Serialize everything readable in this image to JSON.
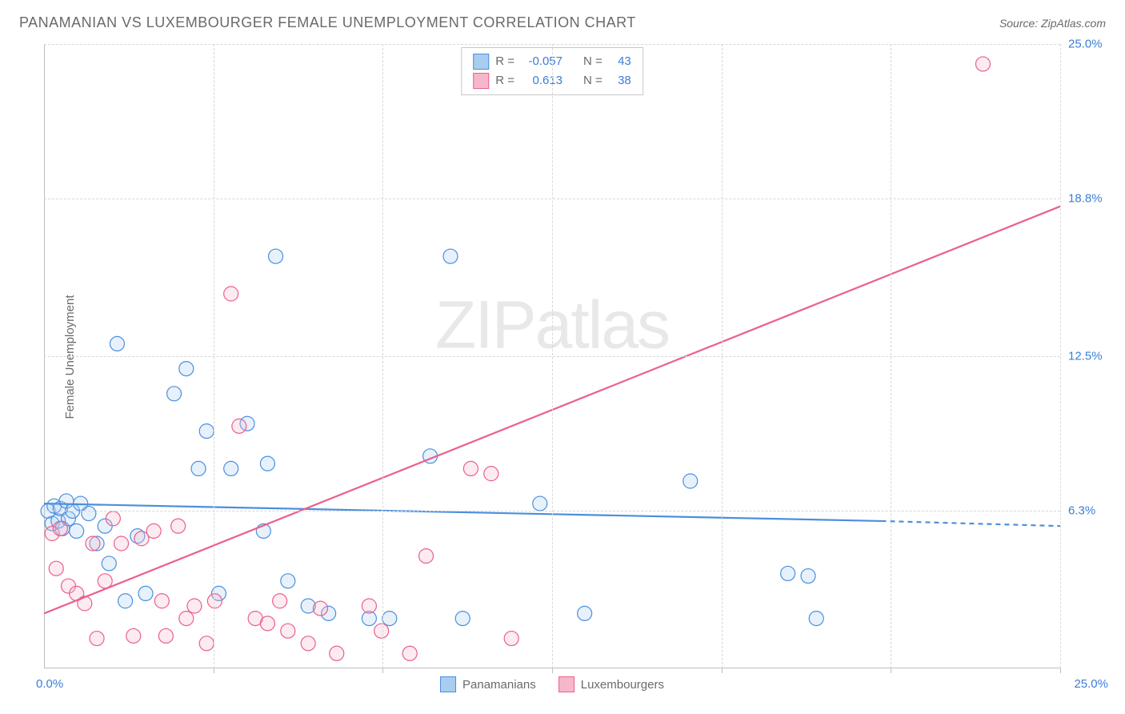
{
  "title": "PANAMANIAN VS LUXEMBOURGER FEMALE UNEMPLOYMENT CORRELATION CHART",
  "source": "Source: ZipAtlas.com",
  "ylabel": "Female Unemployment",
  "watermark_left": "ZIP",
  "watermark_right": "atlas",
  "chart": {
    "type": "scatter",
    "xlim": [
      0,
      25
    ],
    "ylim": [
      0,
      25
    ],
    "y_ticks": [
      6.3,
      12.5,
      18.8,
      25.0
    ],
    "y_tick_labels": [
      "6.3%",
      "12.5%",
      "18.8%",
      "25.0%"
    ],
    "x_tick_left": "0.0%",
    "x_tick_right": "25.0%",
    "x_grid_positions": [
      4.17,
      8.33,
      12.5,
      16.67,
      20.83,
      25.0
    ],
    "background_color": "#ffffff",
    "grid_color": "#d8d8d8",
    "axis_color": "#bdbdbd",
    "marker_radius": 9,
    "marker_stroke_width": 1.2,
    "marker_fill_opacity": 0.28,
    "line_width": 2.2,
    "series": [
      {
        "name": "Panamanians",
        "color": "#4c8fdd",
        "fill": "#a9cdef",
        "R_label": "R =",
        "R": "-0.057",
        "N_label": "N =",
        "N": "43",
        "trend": {
          "x1": 0,
          "y1": 6.6,
          "x2": 20.6,
          "y2": 5.9,
          "dash_to_x": 25,
          "dash_to_y": 5.7
        },
        "points": [
          [
            0.1,
            6.3
          ],
          [
            0.2,
            5.8
          ],
          [
            0.25,
            6.5
          ],
          [
            0.35,
            5.9
          ],
          [
            0.4,
            6.4
          ],
          [
            0.45,
            5.6
          ],
          [
            0.55,
            6.7
          ],
          [
            0.6,
            6.0
          ],
          [
            0.7,
            6.3
          ],
          [
            0.8,
            5.5
          ],
          [
            0.9,
            6.6
          ],
          [
            1.1,
            6.2
          ],
          [
            1.3,
            5.0
          ],
          [
            1.5,
            5.7
          ],
          [
            1.6,
            4.2
          ],
          [
            1.8,
            13.0
          ],
          [
            2.3,
            5.3
          ],
          [
            2.5,
            3.0
          ],
          [
            3.2,
            11.0
          ],
          [
            3.5,
            12.0
          ],
          [
            3.8,
            8.0
          ],
          [
            4.0,
            9.5
          ],
          [
            4.6,
            8.0
          ],
          [
            5.0,
            9.8
          ],
          [
            5.5,
            8.2
          ],
          [
            5.7,
            16.5
          ],
          [
            6.5,
            2.5
          ],
          [
            7.0,
            2.2
          ],
          [
            8.0,
            2.0
          ],
          [
            8.5,
            2.0
          ],
          [
            9.5,
            8.5
          ],
          [
            10.3,
            2.0
          ],
          [
            10.0,
            16.5
          ],
          [
            12.2,
            6.6
          ],
          [
            13.3,
            2.2
          ],
          [
            15.9,
            7.5
          ],
          [
            18.3,
            3.8
          ],
          [
            18.8,
            3.7
          ],
          [
            19.0,
            2.0
          ],
          [
            4.3,
            3.0
          ],
          [
            5.4,
            5.5
          ],
          [
            6.0,
            3.5
          ],
          [
            2.0,
            2.7
          ]
        ]
      },
      {
        "name": "Luxembourgers",
        "color": "#ec5f8a",
        "fill": "#f6b7cb",
        "R_label": "R =",
        "R": "0.613",
        "N_label": "N =",
        "N": "38",
        "trend": {
          "x1": 0,
          "y1": 2.2,
          "x2": 25,
          "y2": 18.5
        },
        "points": [
          [
            0.2,
            5.4
          ],
          [
            0.3,
            4.0
          ],
          [
            0.4,
            5.6
          ],
          [
            0.6,
            3.3
          ],
          [
            0.8,
            3.0
          ],
          [
            1.0,
            2.6
          ],
          [
            1.2,
            5.0
          ],
          [
            1.3,
            1.2
          ],
          [
            1.5,
            3.5
          ],
          [
            1.7,
            6.0
          ],
          [
            1.9,
            5.0
          ],
          [
            2.2,
            1.3
          ],
          [
            2.4,
            5.2
          ],
          [
            2.7,
            5.5
          ],
          [
            2.9,
            2.7
          ],
          [
            3.0,
            1.3
          ],
          [
            3.3,
            5.7
          ],
          [
            3.5,
            2.0
          ],
          [
            3.7,
            2.5
          ],
          [
            4.0,
            1.0
          ],
          [
            4.2,
            2.7
          ],
          [
            4.6,
            15.0
          ],
          [
            4.8,
            9.7
          ],
          [
            5.2,
            2.0
          ],
          [
            5.5,
            1.8
          ],
          [
            5.8,
            2.7
          ],
          [
            6.0,
            1.5
          ],
          [
            6.5,
            1.0
          ],
          [
            6.8,
            2.4
          ],
          [
            7.2,
            0.6
          ],
          [
            8.0,
            2.5
          ],
          [
            8.3,
            1.5
          ],
          [
            9.0,
            0.6
          ],
          [
            9.4,
            4.5
          ],
          [
            10.5,
            8.0
          ],
          [
            11.0,
            7.8
          ],
          [
            11.5,
            1.2
          ],
          [
            23.1,
            24.2
          ]
        ]
      }
    ]
  },
  "legend": {
    "series1": "Panamanians",
    "series2": "Luxembourgers"
  }
}
